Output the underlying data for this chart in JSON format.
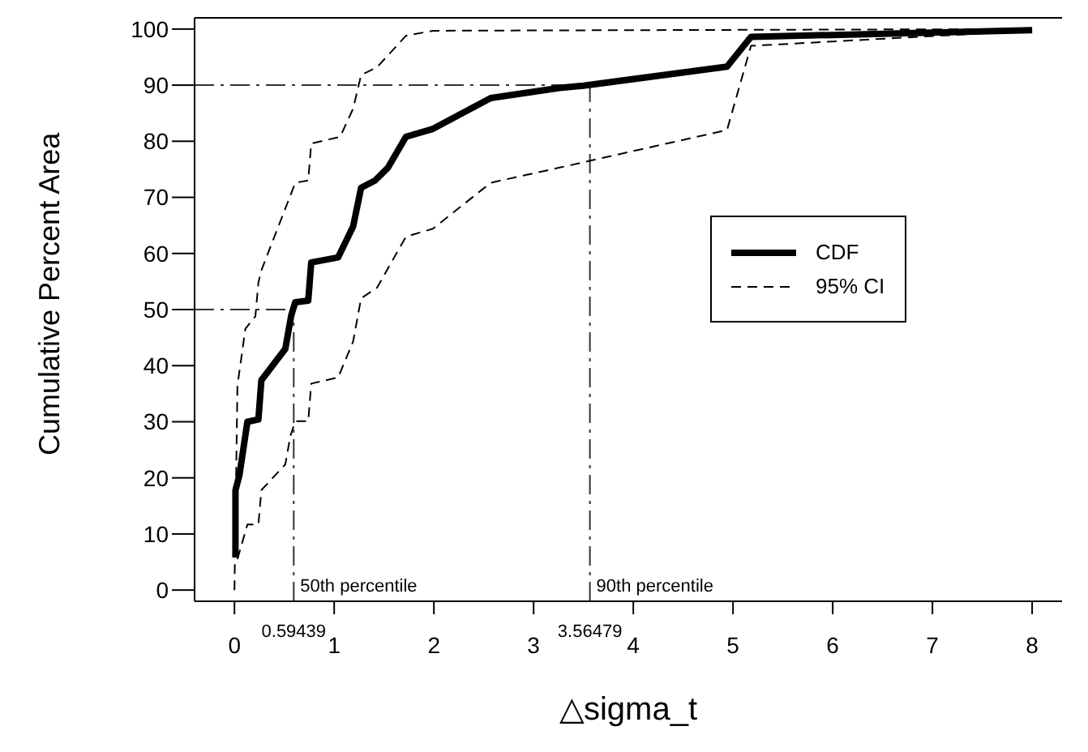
{
  "chart_data": {
    "type": "line",
    "xlabel": "△sigma_t",
    "ylabel": "Cumulative Percent Area",
    "xlim": [
      -0.4,
      8.3
    ],
    "ylim": [
      -2,
      102
    ],
    "xticks": [
      0,
      1,
      2,
      3,
      4,
      5,
      6,
      7,
      8
    ],
    "yticks": [
      0,
      10,
      20,
      30,
      40,
      50,
      60,
      70,
      80,
      90,
      100
    ],
    "grid": false,
    "legend": "right",
    "marker": "none",
    "series": [
      {
        "name": "CDF",
        "color": "#000000",
        "line_style": "solid",
        "x": [
          0.01,
          0.01,
          0.05,
          0.13,
          0.24,
          0.27,
          0.51,
          0.57,
          0.61,
          0.74,
          0.77,
          1.04,
          1.19,
          1.27,
          1.41,
          1.54,
          1.72,
          1.99,
          2.57,
          3.26,
          3.5,
          4.94,
          5.18,
          8.0
        ],
        "values": [
          5.8,
          17.8,
          20.5,
          30,
          30.4,
          37.4,
          43,
          49,
          51.3,
          51.6,
          58.4,
          59.3,
          64.8,
          71.7,
          73,
          75.3,
          80.8,
          82.2,
          87.7,
          89.5,
          89.9,
          93.3,
          98.6,
          99.8
        ]
      },
      {
        "name": "95% CI",
        "color": "#000000",
        "line_style": "dashed",
        "x": [
          0,
          0.03,
          0.11,
          0.21,
          0.24,
          0.27,
          0.56,
          0.61,
          0.74,
          0.77,
          1.06,
          1.19,
          1.27,
          1.43,
          1.72,
          1.99,
          8.0
        ],
        "values": [
          0,
          36.5,
          46.6,
          48.8,
          54.8,
          57,
          70.3,
          72.6,
          73,
          79.6,
          80.8,
          85.8,
          91.8,
          93.2,
          98.8,
          99.7,
          100
        ]
      },
      {
        "color": "#000000",
        "line_style": "dashed",
        "x": [
          0.03,
          0.13,
          0.24,
          0.27,
          0.51,
          0.56,
          0.61,
          0.74,
          0.77,
          1.04,
          1.19,
          1.27,
          1.43,
          1.72,
          1.99,
          2.57,
          3.26,
          4.94,
          5.18,
          8.0
        ],
        "values": [
          5.5,
          11.7,
          11.7,
          17.8,
          22.4,
          27.4,
          30.1,
          30.1,
          36.8,
          37.9,
          44.3,
          52,
          53.9,
          63,
          64.4,
          72.6,
          75.3,
          82,
          97,
          99.7
        ]
      }
    ],
    "annotations": [
      "0.59439",
      "3.56479"
    ],
    "ref_lines": [
      {
        "axis": "x",
        "value": 0.59439,
        "label": "50th percentile",
        "line_style": "dashdot"
      },
      {
        "axis": "y",
        "value": 50,
        "line_style": "dashdot"
      },
      {
        "axis": "x",
        "value": 3.56479,
        "label": "90th percentile",
        "line_style": "dashdot"
      },
      {
        "axis": "y",
        "value": 90,
        "line_style": "dashdot"
      }
    ]
  }
}
